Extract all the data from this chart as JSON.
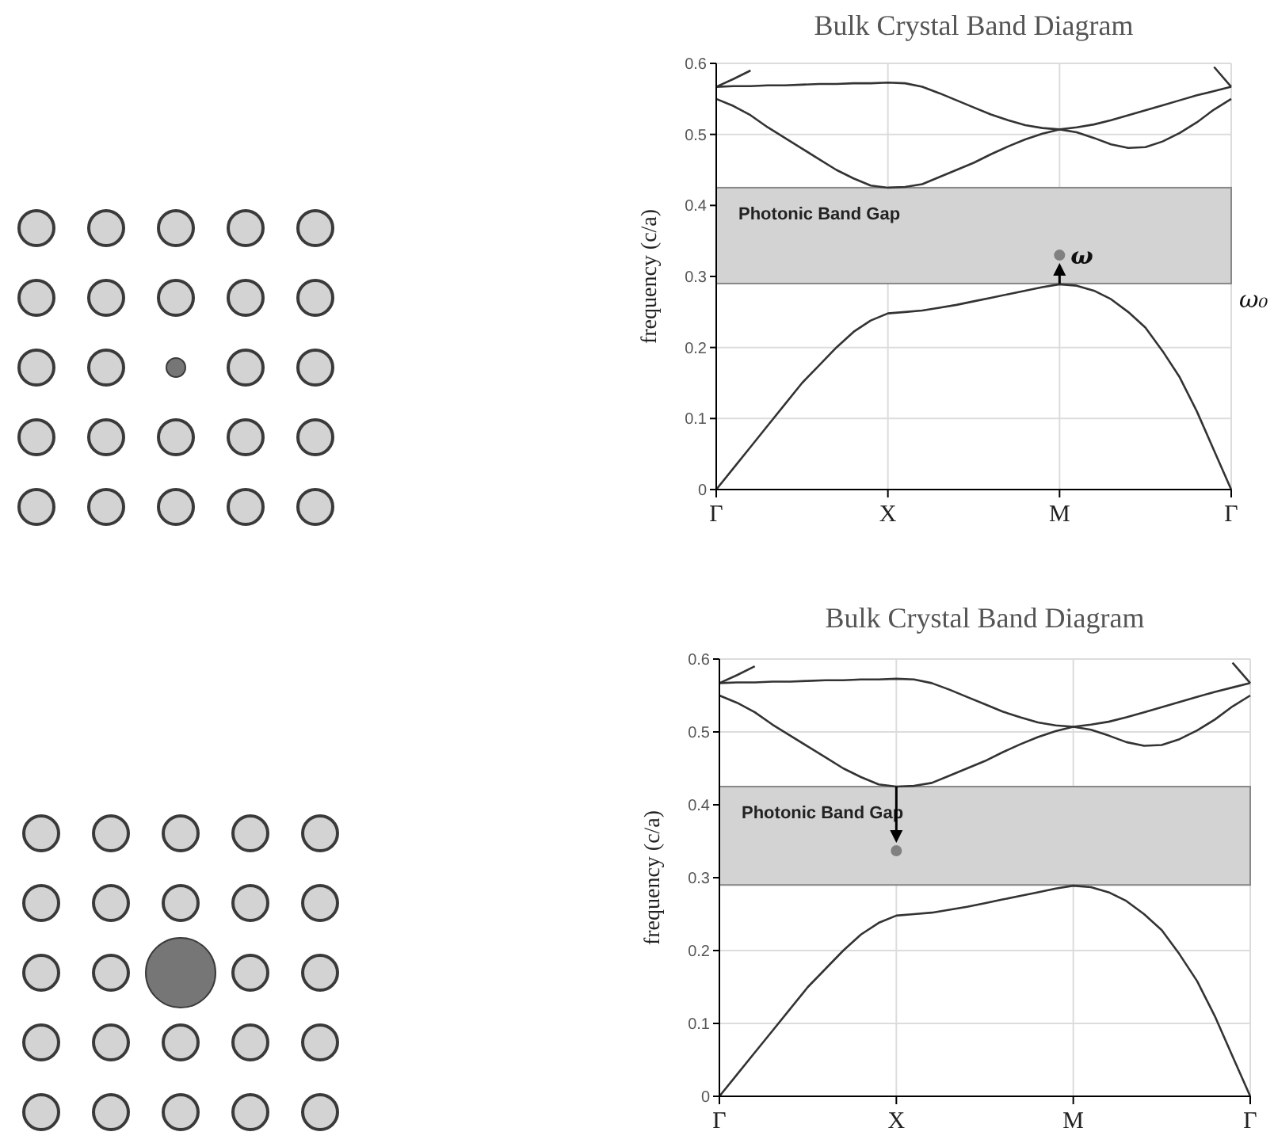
{
  "chart_data": [
    {
      "type": "line",
      "title": "Bulk Crystal Band Diagram",
      "ylabel": "frequency (c/a)",
      "categories": [
        "Γ",
        null,
        null,
        null,
        null,
        null,
        null,
        null,
        null,
        null,
        "X",
        null,
        null,
        null,
        null,
        null,
        null,
        null,
        null,
        null,
        "M",
        null,
        null,
        null,
        null,
        null,
        null,
        null,
        null,
        null,
        "Γ"
      ],
      "ylim": [
        0,
        0.6
      ],
      "yticks": [
        0,
        0.1,
        0.2,
        0.3,
        0.4,
        0.5,
        0.6
      ],
      "grid": true,
      "bands": [
        {
          "axis": "y",
          "from": 0.29,
          "to": 0.425,
          "label": "Photonic Band Gap",
          "color": "#d3d3d3"
        }
      ],
      "annotations": [
        {
          "text": "ω",
          "x": "M",
          "y": 0.33
        },
        "ω₀"
      ],
      "series": [
        {
          "color": "#333333",
          "values": [
            0,
            0.03,
            0.06,
            0.09,
            0.12,
            0.15,
            0.175,
            0.2,
            0.222,
            0.238,
            0.248,
            0.25,
            0.252,
            0.256,
            0.26,
            0.265,
            0.27,
            0.275,
            0.28,
            0.285,
            0.289,
            0.287,
            0.28,
            0.268,
            0.25,
            0.228,
            0.195,
            0.158,
            0.11,
            0.055,
            0
          ]
        },
        {
          "color": "#333333",
          "values": [
            0.55,
            0.54,
            0.527,
            0.51,
            0.495,
            0.48,
            0.465,
            0.45,
            0.438,
            0.428,
            0.425,
            0.426,
            0.43,
            0.44,
            0.45,
            0.46,
            0.472,
            0.483,
            0.493,
            0.501,
            0.507,
            0.503,
            0.495,
            0.486,
            0.481,
            0.482,
            0.49,
            0.502,
            0.517,
            0.535,
            0.55
          ]
        },
        {
          "color": "#333333",
          "values": [
            0.567,
            0.568,
            0.568,
            0.569,
            0.569,
            0.57,
            0.571,
            0.571,
            0.572,
            0.572,
            0.573,
            0.572,
            0.567,
            0.558,
            0.548,
            0.538,
            0.528,
            0.52,
            0.513,
            0.509,
            0.507,
            0.51,
            0.514,
            0.52,
            0.527,
            0.534,
            0.541,
            0.548,
            0.555,
            0.561,
            0.567
          ]
        },
        {
          "color": "#333333",
          "values": [
            0.567,
            0.578,
            0.59,
            null,
            null,
            null,
            null,
            null,
            null,
            null,
            null,
            null,
            null,
            null,
            null,
            null,
            null,
            null,
            null,
            null,
            null,
            null,
            null,
            null,
            null,
            null,
            null,
            null,
            null,
            0.595,
            0.567
          ]
        },
        {
          "type": "scatter",
          "color": "#808080",
          "marker": "circle",
          "x": [
            "M"
          ],
          "values": [
            0.33
          ]
        }
      ]
    },
    {
      "type": "line",
      "title": "Bulk Crystal Band Diagram",
      "ylabel": "frequency (c/a)",
      "categories": [
        "Γ",
        null,
        null,
        null,
        null,
        null,
        null,
        null,
        null,
        null,
        "X",
        null,
        null,
        null,
        null,
        null,
        null,
        null,
        null,
        null,
        "M",
        null,
        null,
        null,
        null,
        null,
        null,
        null,
        null,
        null,
        "Γ"
      ],
      "ylim": [
        0,
        0.6
      ],
      "yticks": [
        0,
        0.1,
        0.2,
        0.3,
        0.4,
        0.5,
        0.6
      ],
      "grid": true,
      "bands": [
        {
          "axis": "y",
          "from": 0.29,
          "to": 0.425,
          "label": "Photonic Band Gap",
          "color": "#d3d3d3"
        }
      ],
      "series": [
        {
          "color": "#333333",
          "values": [
            0,
            0.03,
            0.06,
            0.09,
            0.12,
            0.15,
            0.175,
            0.2,
            0.222,
            0.238,
            0.248,
            0.25,
            0.252,
            0.256,
            0.26,
            0.265,
            0.27,
            0.275,
            0.28,
            0.285,
            0.289,
            0.287,
            0.28,
            0.268,
            0.25,
            0.228,
            0.195,
            0.158,
            0.11,
            0.055,
            0
          ]
        },
        {
          "color": "#333333",
          "values": [
            0.55,
            0.54,
            0.527,
            0.51,
            0.495,
            0.48,
            0.465,
            0.45,
            0.438,
            0.428,
            0.425,
            0.426,
            0.43,
            0.44,
            0.45,
            0.46,
            0.472,
            0.483,
            0.493,
            0.501,
            0.507,
            0.503,
            0.495,
            0.486,
            0.481,
            0.482,
            0.49,
            0.502,
            0.517,
            0.535,
            0.55
          ]
        },
        {
          "color": "#333333",
          "values": [
            0.567,
            0.568,
            0.568,
            0.569,
            0.569,
            0.57,
            0.571,
            0.571,
            0.572,
            0.572,
            0.573,
            0.572,
            0.567,
            0.558,
            0.548,
            0.538,
            0.528,
            0.52,
            0.513,
            0.509,
            0.507,
            0.51,
            0.514,
            0.52,
            0.527,
            0.534,
            0.541,
            0.548,
            0.555,
            0.561,
            0.567
          ]
        },
        {
          "color": "#333333",
          "values": [
            0.567,
            0.578,
            0.59,
            null,
            null,
            null,
            null,
            null,
            null,
            null,
            null,
            null,
            null,
            null,
            null,
            null,
            null,
            null,
            null,
            null,
            null,
            null,
            null,
            null,
            null,
            null,
            null,
            null,
            null,
            0.595,
            0.567
          ]
        },
        {
          "type": "scatter",
          "color": "#808080",
          "marker": "circle",
          "x": [
            "X"
          ],
          "values": [
            0.337
          ]
        }
      ]
    }
  ]
}
